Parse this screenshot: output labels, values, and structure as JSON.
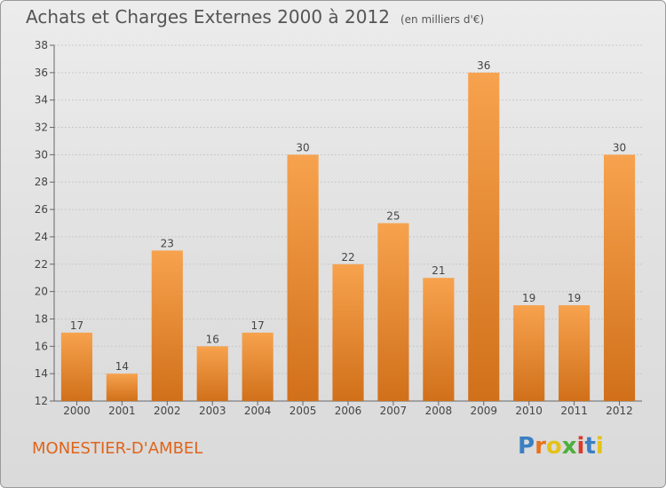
{
  "header": {
    "title": "Achats et Charges Externes 2000 à 2012",
    "subtitle": "(en milliers d'€)"
  },
  "footer": {
    "commune": "MONESTIER-D'AMBEL",
    "brand": "Proxiti",
    "brand_colors": [
      "#3b7fc4",
      "#e8731c",
      "#e3c21a",
      "#4caf3a",
      "#d93a2a",
      "#3b7fc4",
      "#e3c21a"
    ]
  },
  "colors": {
    "bar_top": "#f7a24e",
    "bar_bottom": "#d1701a",
    "grid": "#c8c8c8",
    "text": "#444444"
  },
  "chart_data": {
    "type": "bar",
    "categories": [
      "2000",
      "2001",
      "2002",
      "2003",
      "2004",
      "2005",
      "2006",
      "2007",
      "2008",
      "2009",
      "2010",
      "2011",
      "2012"
    ],
    "values": [
      17,
      14,
      23,
      16,
      17,
      30,
      22,
      25,
      21,
      36,
      19,
      19,
      30
    ],
    "ylim": [
      12,
      38
    ],
    "yticks": [
      12,
      14,
      16,
      18,
      20,
      22,
      24,
      26,
      28,
      30,
      32,
      34,
      36,
      38
    ],
    "grid": true,
    "legend": false
  }
}
